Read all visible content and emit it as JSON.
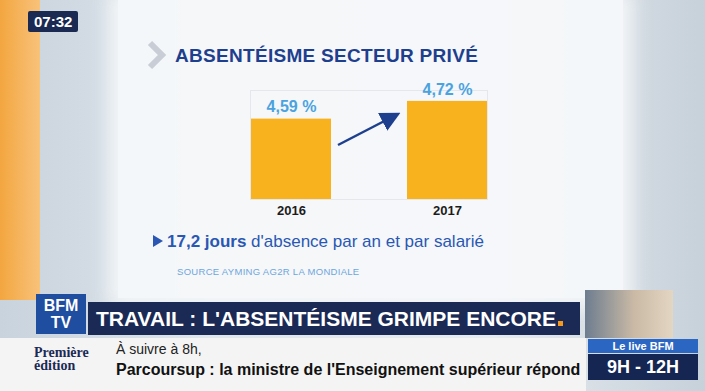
{
  "chart_data": {
    "type": "bar",
    "title": "ABSENTÉISME SECTEUR PRIVÉ",
    "categories": [
      "2016",
      "2017"
    ],
    "values": [
      4.59,
      4.72
    ],
    "value_labels": [
      "4,59 %",
      "4,72 %"
    ],
    "data_labels": true,
    "color": "#f7b21d",
    "ylim": [
      4,
      4.8
    ],
    "tick_labels": "x",
    "annotations": [
      "17,2 jours d'absence par an et par salarié"
    ],
    "source": "SOURCE AYMING AG2R LA MONDIALE"
  },
  "screen": {
    "clock": "07:32",
    "channel": [
      "BFM",
      "TV"
    ],
    "headline": "TRAVAIL : L'ABSENTÉISME GRIMPE ENCORE",
    "show": [
      "Première",
      "édition"
    ],
    "next_intro": "À suivre à 8h,",
    "next": "Parcoursup : la ministre de l'Enseignement supérieur répond",
    "live": "Le live BFM",
    "live_hours": "9H - 12H"
  }
}
